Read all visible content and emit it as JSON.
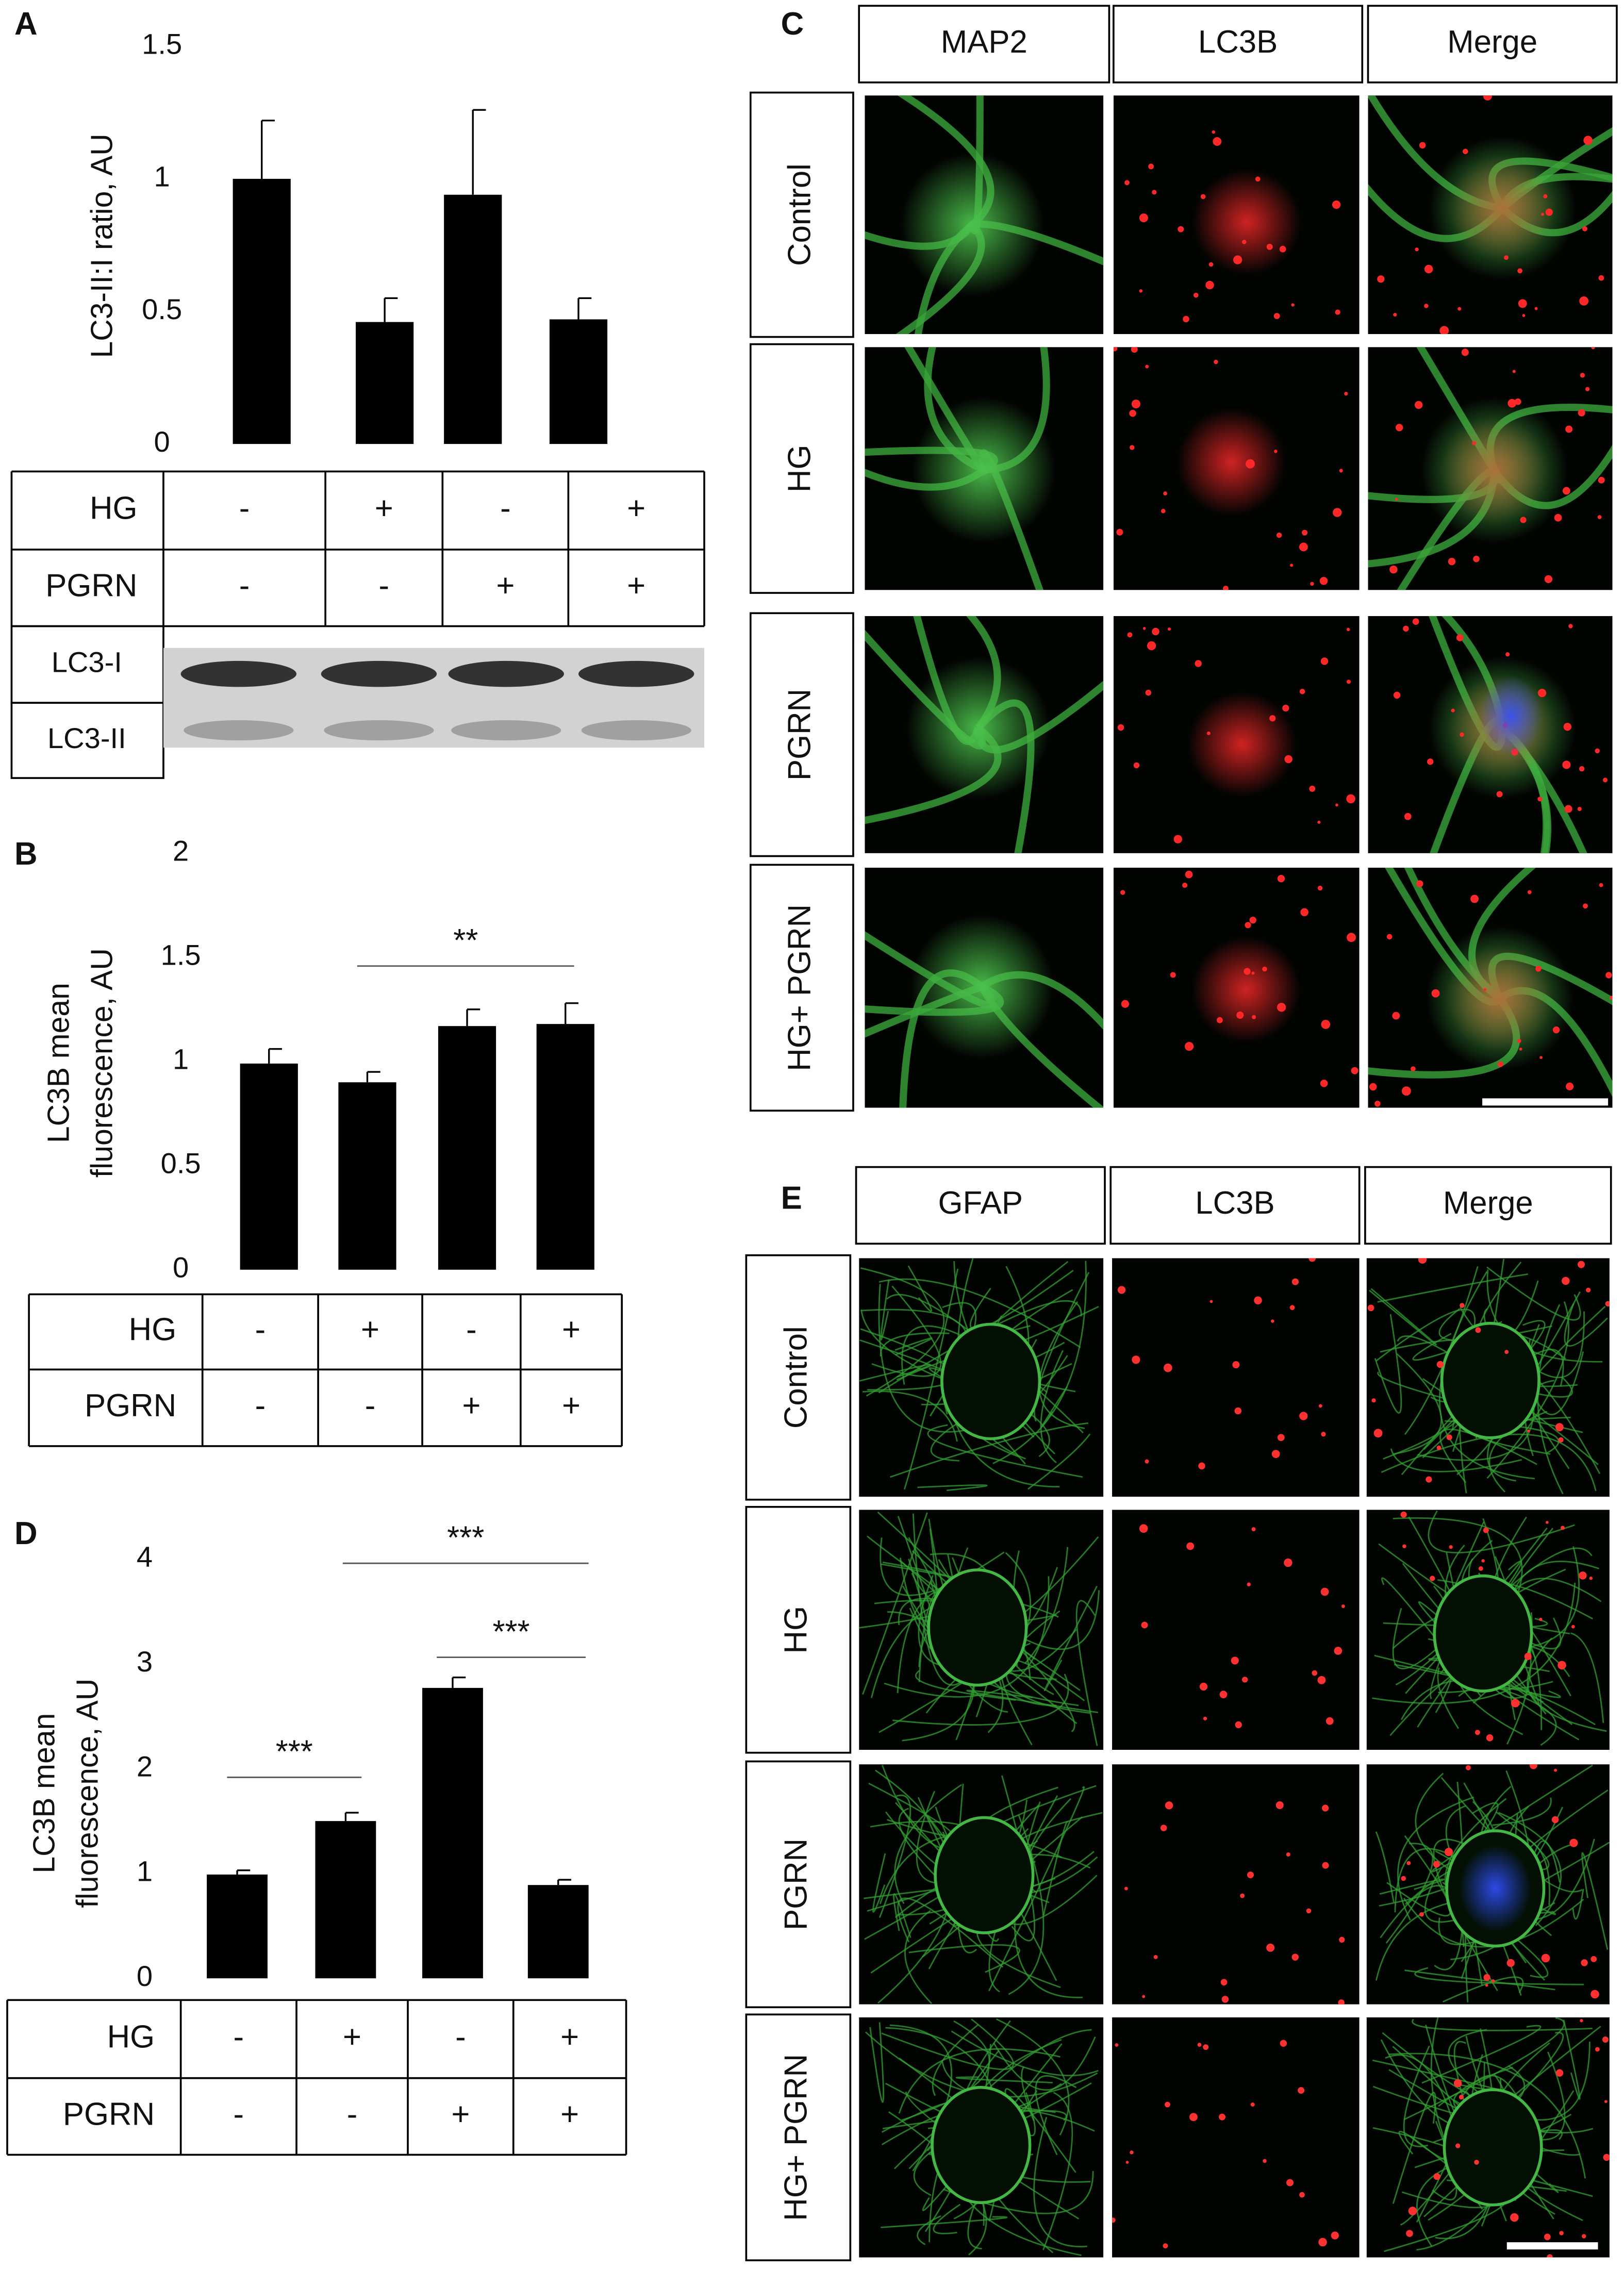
{
  "chart_data": [
    {
      "type": "bar",
      "letter": "A",
      "ylabel": "LC3-II:I ratio, AU",
      "color": "#000000",
      "values": [
        1.0,
        0.46,
        0.94,
        0.47
      ],
      "errors": [
        0.22,
        0.09,
        0.32,
        0.08
      ],
      "ylim": [
        0,
        1.5
      ],
      "yticks": [
        0,
        0.5,
        1,
        1.5
      ],
      "table": {
        "rows": [
          {
            "label": "HG",
            "cells": [
              "-",
              "+",
              "-",
              "+"
            ]
          },
          {
            "label": "PGRN",
            "cells": [
              "-",
              "-",
              "+",
              "+"
            ]
          }
        ]
      },
      "blot": {
        "labels": [
          "LC3-I",
          "LC3-II"
        ]
      },
      "annotations": []
    },
    {
      "type": "bar",
      "letter": "B",
      "ylabel": [
        "LC3B mean",
        "fluorescence, AU"
      ],
      "color": "#000000",
      "values": [
        0.99,
        0.9,
        1.17,
        1.18
      ],
      "errors": [
        0.07,
        0.05,
        0.08,
        0.1
      ],
      "ylim": [
        0,
        2
      ],
      "yticks": [
        0,
        0.5,
        1,
        1.5,
        2
      ],
      "table": {
        "rows": [
          {
            "label": "HG",
            "cells": [
              "-",
              "+",
              "-",
              "+"
            ]
          },
          {
            "label": "PGRN",
            "cells": [
              "-",
              "-",
              "+",
              "+"
            ]
          }
        ]
      },
      "annotations": [
        "**"
      ]
    },
    {
      "type": "bar",
      "letter": "D",
      "ylabel": [
        "LC3B mean",
        "fluorescence, AU"
      ],
      "color": "#000000",
      "values": [
        0.99,
        1.5,
        2.77,
        0.89
      ],
      "errors": [
        0.04,
        0.08,
        0.1,
        0.05
      ],
      "ylim": [
        0,
        4
      ],
      "yticks": [
        0,
        1,
        2,
        3,
        4
      ],
      "table": {
        "rows": [
          {
            "label": "HG",
            "cells": [
              "-",
              "+",
              "-",
              "+"
            ]
          },
          {
            "label": "PGRN",
            "cells": [
              "-",
              "-",
              "+",
              "+"
            ]
          }
        ]
      },
      "annotations": [
        "***",
        "***",
        "***"
      ]
    }
  ],
  "panels": {
    "C": {
      "letter": "C",
      "columns": [
        "MAP2",
        "LC3B",
        "Merge"
      ],
      "rows": [
        "Control",
        "HG",
        "PGRN",
        "HG+ PGRN"
      ]
    },
    "E": {
      "letter": "E",
      "columns": [
        "GFAP",
        "LC3B",
        "Merge"
      ],
      "rows": [
        "Control",
        "HG",
        "PGRN",
        "HG+ PGRN"
      ]
    }
  }
}
